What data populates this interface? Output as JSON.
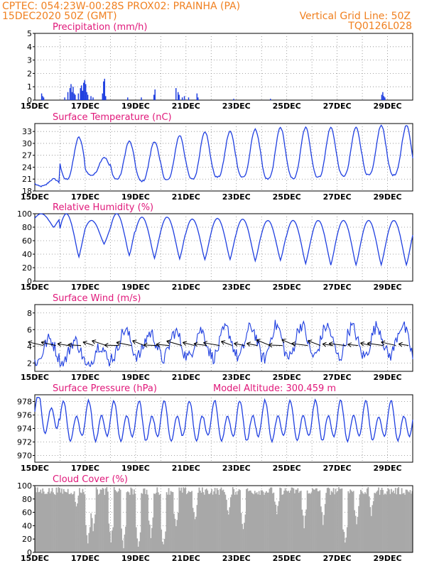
{
  "header": {
    "left_line1": "CPTEC:   054:23W-00:28S   PROX02: PRAINHA (PA)",
    "left_line2": "15DEC2020 50Z (GMT)",
    "right_line2": "Vertical Grid Line: 50Z",
    "right_line3": "TQ0126L028"
  },
  "colors": {
    "header": "#f08020",
    "title": "#e0187a",
    "line": "#1f3fe0",
    "cloud": "#a8a8a8",
    "grid": "#888888"
  },
  "chart_data": [
    {
      "id": "precip",
      "type": "bar",
      "title": "Precipitation (mm/h)",
      "xlabel": "",
      "ylabel": "",
      "x_ticks": [
        "15DEC",
        "17DEC",
        "19DEC",
        "21DEC",
        "23DEC",
        "25DEC",
        "27DEC",
        "29DEC"
      ],
      "x_range_days": [
        15,
        30
      ],
      "ylim": [
        0,
        5
      ],
      "y_ticks": [
        0,
        1,
        2,
        3,
        4,
        5
      ],
      "grid": true,
      "values_by_hour": [
        [
          6,
          0.5
        ],
        [
          7,
          0.3
        ],
        [
          8,
          0.2
        ],
        [
          28,
          0.2
        ],
        [
          31,
          0.6
        ],
        [
          33,
          0.9
        ],
        [
          34,
          1.2
        ],
        [
          35,
          0.6
        ],
        [
          36,
          1.0
        ],
        [
          37,
          0.5
        ],
        [
          38,
          0.4
        ],
        [
          41,
          0.5
        ],
        [
          43,
          0.9
        ],
        [
          44,
          1.1
        ],
        [
          45,
          0.7
        ],
        [
          46,
          1.3
        ],
        [
          47,
          1.5
        ],
        [
          48,
          1.2
        ],
        [
          49,
          0.6
        ],
        [
          50,
          0.4
        ],
        [
          53,
          0.3
        ],
        [
          55,
          0.2
        ],
        [
          64,
          0.5
        ],
        [
          65,
          1.4
        ],
        [
          66,
          1.6
        ],
        [
          67,
          0.3
        ],
        [
          88,
          0.2
        ],
        [
          101,
          0.2
        ],
        [
          113,
          0.4
        ],
        [
          114,
          0.8
        ],
        [
          134,
          0.9
        ],
        [
          136,
          0.6
        ],
        [
          137,
          0.4
        ],
        [
          140,
          0.2
        ],
        [
          142,
          0.3
        ],
        [
          146,
          0.2
        ],
        [
          154,
          0.5
        ],
        [
          155,
          0.2
        ],
        [
          189,
          0.1
        ],
        [
          224,
          0.1
        ],
        [
          330,
          0.4
        ],
        [
          331,
          0.6
        ],
        [
          332,
          0.3
        ],
        [
          333,
          0.2
        ]
      ]
    },
    {
      "id": "temp",
      "type": "line",
      "title": "Surface Temperature (nC)",
      "ylim": [
        18,
        35
      ],
      "y_ticks": [
        18,
        21,
        24,
        27,
        30,
        33
      ],
      "series": [
        {
          "daily_min": [
            19.2,
            21.0,
            22.0,
            21.0,
            20.5,
            20.8,
            21.0,
            21.5,
            21.5,
            21.0,
            21.2,
            21.5,
            21.8,
            22.0,
            22.0,
            21.5
          ],
          "daily_max": [
            21.0,
            31.5,
            26.5,
            30.5,
            30.5,
            32.0,
            33.0,
            33.0,
            33.5,
            34.0,
            34.0,
            34.0,
            34.0,
            34.5,
            34.5,
            34.0
          ]
        }
      ]
    },
    {
      "id": "rh",
      "type": "line",
      "title": "Relative Humidity (%)",
      "ylim": [
        0,
        100
      ],
      "y_ticks": [
        0,
        20,
        40,
        60,
        80,
        100
      ],
      "series": [
        {
          "daily_min": [
            80,
            36,
            55,
            38,
            34,
            33,
            32,
            32,
            30,
            31,
            26,
            24,
            24,
            24,
            24,
            26
          ],
          "daily_max": [
            100,
            100,
            90,
            100,
            95,
            95,
            92,
            93,
            92,
            90,
            90,
            90,
            90,
            90,
            90,
            90
          ]
        }
      ]
    },
    {
      "id": "wind",
      "type": "line",
      "title": "Surface Wind (m/s)",
      "ylim": [
        1,
        9
      ],
      "y_ticks": [
        2,
        4,
        6,
        8
      ],
      "series": [
        {
          "mean": [
            3.5,
            3.3,
            2.8,
            4.3,
            4.2,
            4.1,
            4.3,
            4.4,
            4.5,
            4.5,
            4.6,
            4.6,
            4.5,
            4.6,
            4.7,
            4.5
          ],
          "amp": [
            1.5,
            1.5,
            1.5,
            1.8,
            1.5,
            1.8,
            1.8,
            1.9,
            2.0,
            2.2,
            2.2,
            2.0,
            2.0,
            2.0,
            2.0,
            2.5
          ]
        }
      ],
      "arrows_every_hours": 12
    },
    {
      "id": "pres",
      "type": "line",
      "title": "Surface Pressure (hPa)",
      "annotation": "Model Altitude: 300.459  m",
      "ylim": [
        969,
        979
      ],
      "y_ticks": [
        970,
        972,
        974,
        976,
        978
      ],
      "series": [
        {
          "mean": 974.8,
          "semi_diurnal_amp": 2.2,
          "diurnal_amp": 1.2
        }
      ]
    },
    {
      "id": "cloud",
      "type": "area",
      "title": "Cloud Cover (%)",
      "ylim": [
        0,
        100
      ],
      "y_ticks": [
        0,
        20,
        40,
        60,
        80,
        100
      ],
      "series": [
        {
          "base": 92,
          "dips": [
            [
              39,
              60
            ],
            [
              50,
              8
            ],
            [
              55,
              30
            ],
            [
              72,
              12
            ],
            [
              84,
              5
            ],
            [
              98,
              4
            ],
            [
              110,
              20
            ],
            [
              122,
              3
            ],
            [
              134,
              30
            ],
            [
              152,
              40
            ],
            [
              184,
              50
            ],
            [
              198,
              30
            ],
            [
              230,
              50
            ],
            [
              256,
              35
            ],
            [
              274,
              40
            ],
            [
              295,
              10
            ],
            [
              306,
              38
            ],
            [
              320,
              50
            ]
          ]
        }
      ]
    }
  ]
}
